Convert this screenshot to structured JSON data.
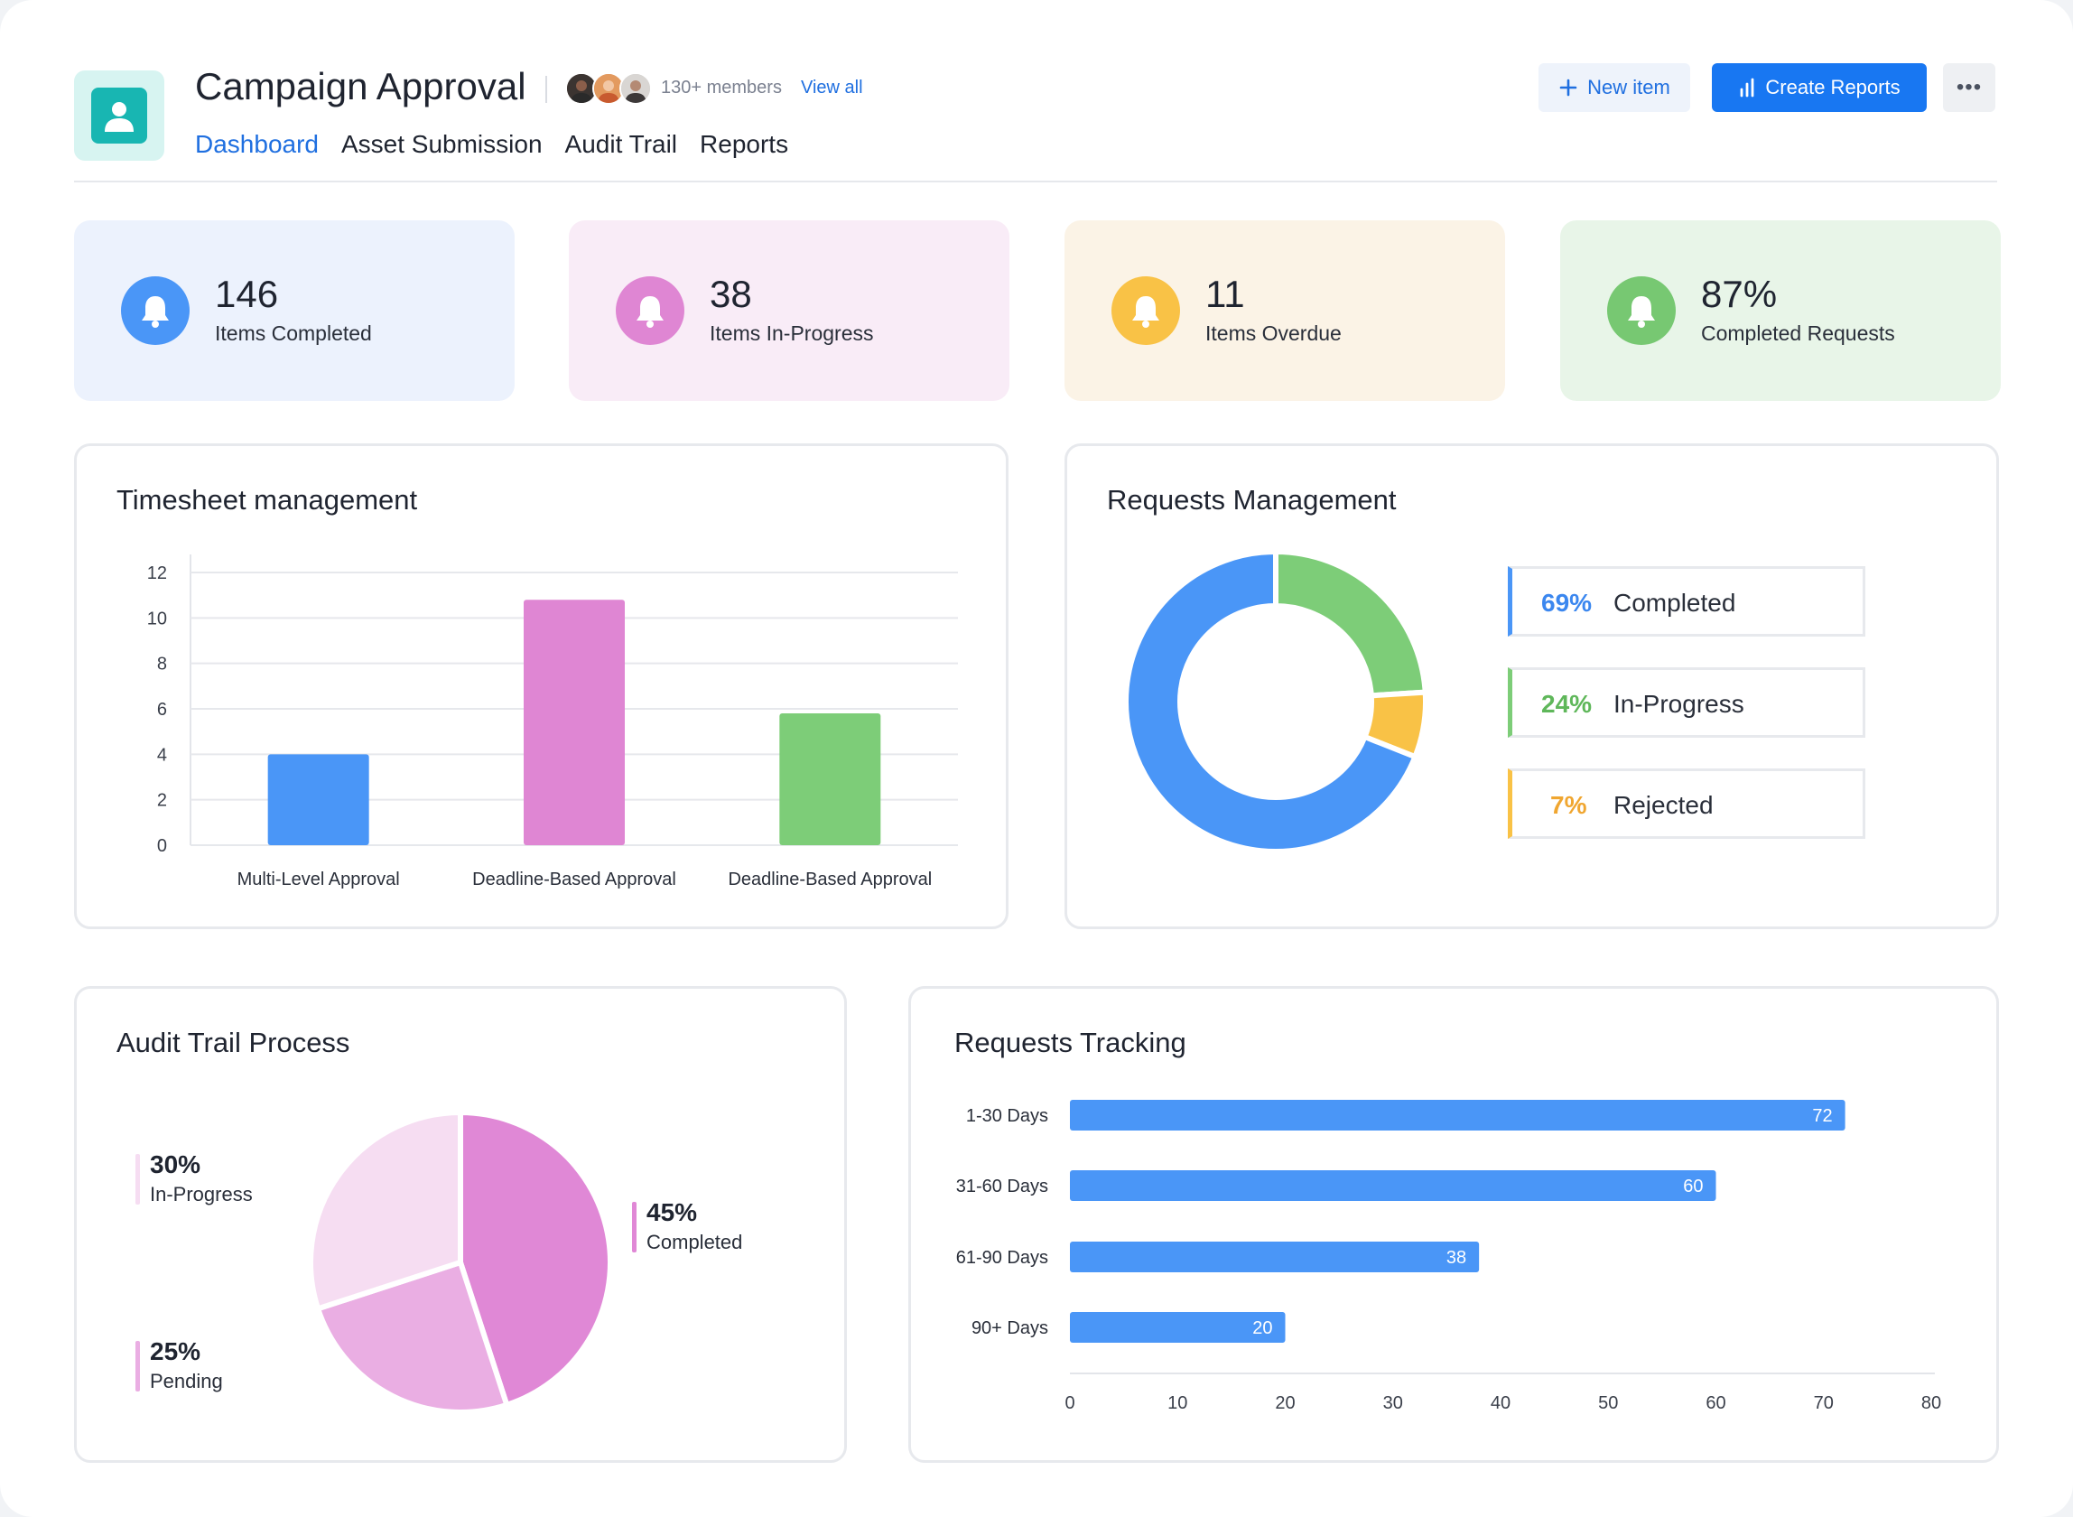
{
  "header": {
    "title": "Campaign Approval",
    "members_text": "130+ members",
    "view_all": "View all",
    "tabs": [
      {
        "label": "Dashboard",
        "active": true
      },
      {
        "label": "Asset Submission",
        "active": false
      },
      {
        "label": "Audit Trail",
        "active": false
      },
      {
        "label": "Reports",
        "active": false
      }
    ],
    "new_item_label": "New item",
    "create_reports_label": "Create Reports",
    "more_label": "•••"
  },
  "kpis": [
    {
      "value": "146",
      "label": "Items Completed",
      "bg": "#ecf2fd",
      "icon_color": "#4a96f7",
      "icon": "bell-icon"
    },
    {
      "value": "38",
      "label": "Items In-Progress",
      "bg": "#f9ecf7",
      "icon_color": "#df86d3",
      "icon": "bell-icon"
    },
    {
      "value": "11",
      "label": "Items Overdue",
      "bg": "#fbf3e6",
      "icon_color": "#f9c246",
      "icon": "bell-icon"
    },
    {
      "value": "87%",
      "label": "Completed Requests",
      "bg": "#e8f5e8",
      "icon_color": "#77c872",
      "icon": "bell-icon"
    }
  ],
  "timesheet": {
    "title": "Timesheet management",
    "chart_data": {
      "type": "bar",
      "categories": [
        "Multi-Level Approval",
        "Deadline-Based Approval",
        "Deadline-Based Approval"
      ],
      "values": [
        4,
        10.8,
        5.8
      ],
      "colors": [
        "#4a96f7",
        "#df86d3",
        "#7dcd78"
      ],
      "yticks": [
        "0",
        "2",
        "4",
        "6",
        "8",
        "10",
        "12"
      ],
      "ylim": [
        0,
        12
      ],
      "grid": true
    }
  },
  "requests_management": {
    "title": "Requests Management",
    "chart_data": {
      "type": "pie",
      "donut": true,
      "labels": [
        "Completed",
        "In-Progress",
        "Rejected"
      ],
      "values": [
        69,
        24,
        7
      ],
      "pct_labels": [
        "69%",
        "24%",
        "7%"
      ],
      "colors": [
        "#4a96f7",
        "#7dcd78",
        "#f9c246"
      ]
    }
  },
  "audit_trail": {
    "title": "Audit Trail Process",
    "chart_data": {
      "type": "pie",
      "labels": [
        "Completed",
        "Pending",
        "In-Progress"
      ],
      "values": [
        45,
        25,
        30
      ],
      "pct_labels": [
        "45%",
        "25%",
        "30%"
      ],
      "colors": [
        "#e088d6",
        "#eaaee3",
        "#f6ddf2"
      ]
    }
  },
  "requests_tracking": {
    "title": "Requests Tracking",
    "chart_data": {
      "type": "bar",
      "orientation": "horizontal",
      "categories": [
        "1-30 Days",
        "31-60 Days",
        "61-90 Days",
        "90+ Days"
      ],
      "values": [
        72,
        60,
        38,
        20
      ],
      "color": "#4a96f7",
      "xticks": [
        "0",
        "10",
        "20",
        "30",
        "40",
        "50",
        "60",
        "70",
        "80"
      ],
      "xlim": [
        0,
        80
      ]
    }
  }
}
